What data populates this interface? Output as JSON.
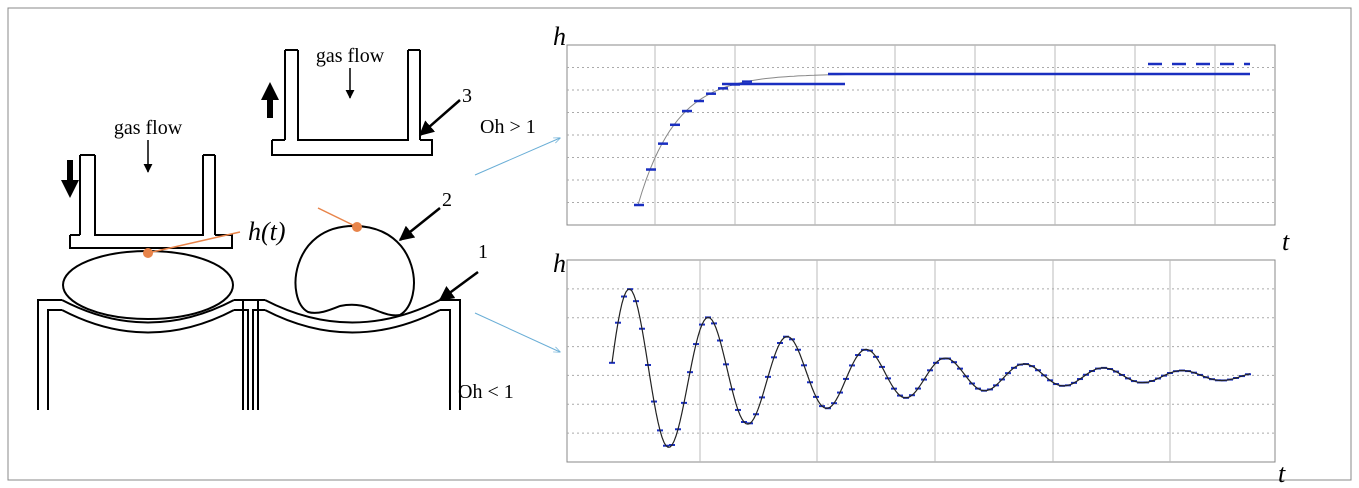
{
  "nozzle_left": {
    "label": "gas flow"
  },
  "nozzle_right": {
    "label": "gas flow"
  },
  "height_label": "h(t)",
  "callouts": [
    "1",
    "2",
    "3"
  ],
  "plots": [
    {
      "regime": "Oh > 1",
      "y_label": "h",
      "x_label": "t"
    },
    {
      "regime": "Oh < 1",
      "y_label": "h",
      "x_label": "t"
    }
  ]
}
